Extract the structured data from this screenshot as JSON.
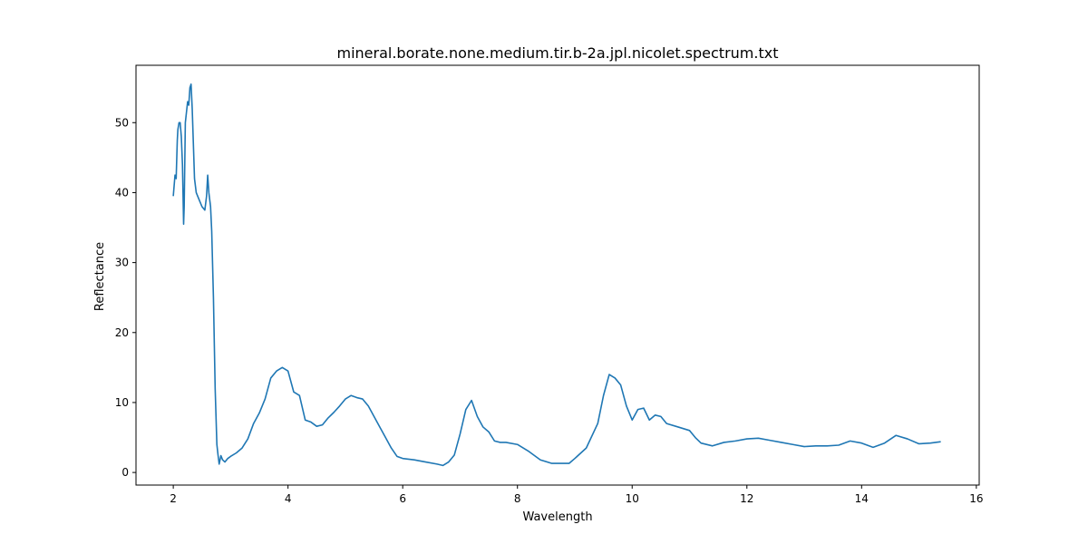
{
  "chart_data": {
    "type": "line",
    "title": "mineral.borate.none.medium.tir.b-2a.jpl.nicolet.spectrum.txt",
    "xlabel": "Wavelength",
    "ylabel": "Reflectance",
    "xlim": [
      1.35,
      16.05
    ],
    "ylim": [
      -1.8,
      58.2
    ],
    "xticks": [
      2,
      4,
      6,
      8,
      10,
      12,
      14,
      16
    ],
    "yticks": [
      0,
      10,
      20,
      30,
      40,
      50
    ],
    "grid": false,
    "legend": "none",
    "color": "#1f77b4",
    "series": [
      {
        "x": [
          2.0,
          2.03,
          2.05,
          2.07,
          2.08,
          2.1,
          2.12,
          2.14,
          2.16,
          2.18,
          2.19,
          2.2,
          2.21,
          2.23,
          2.25,
          2.27,
          2.29,
          2.31,
          2.33,
          2.35,
          2.37,
          2.4,
          2.45,
          2.5,
          2.55,
          2.58,
          2.6,
          2.62,
          2.65,
          2.67,
          2.7,
          2.73,
          2.76,
          2.78,
          2.8,
          2.83,
          2.86,
          2.9,
          2.95,
          3.0,
          3.1,
          3.2,
          3.3,
          3.4,
          3.5,
          3.6,
          3.7,
          3.8,
          3.9,
          4.0,
          4.1,
          4.2,
          4.3,
          4.4,
          4.5,
          4.6,
          4.7,
          4.8,
          4.9,
          5.0,
          5.1,
          5.2,
          5.3,
          5.4,
          5.5,
          5.6,
          5.7,
          5.8,
          5.9,
          6.0,
          6.2,
          6.4,
          6.6,
          6.7,
          6.8,
          6.9,
          7.0,
          7.1,
          7.2,
          7.3,
          7.4,
          7.5,
          7.6,
          7.7,
          7.8,
          8.0,
          8.2,
          8.4,
          8.6,
          8.8,
          8.9,
          9.0,
          9.2,
          9.4,
          9.5,
          9.6,
          9.7,
          9.8,
          9.9,
          10.0,
          10.1,
          10.2,
          10.3,
          10.4,
          10.5,
          10.6,
          10.8,
          11.0,
          11.1,
          11.2,
          11.4,
          11.6,
          11.8,
          12.0,
          12.2,
          12.4,
          12.6,
          12.8,
          13.0,
          13.2,
          13.4,
          13.6,
          13.8,
          14.0,
          14.2,
          14.4,
          14.6,
          14.8,
          15.0,
          15.2,
          15.38
        ],
        "y": [
          39.5,
          42.5,
          42.0,
          47.5,
          49.0,
          50.0,
          50.0,
          48.0,
          44.0,
          35.5,
          38.0,
          44.0,
          50.0,
          51.5,
          53.0,
          52.5,
          55.0,
          55.5,
          52.0,
          47.0,
          42.0,
          40.0,
          39.0,
          38.0,
          37.5,
          39.5,
          42.5,
          40.0,
          38.0,
          34.5,
          25.0,
          12.0,
          4.0,
          2.5,
          1.2,
          2.4,
          1.8,
          1.5,
          2.0,
          2.3,
          2.8,
          3.5,
          4.8,
          7.0,
          8.5,
          10.5,
          13.5,
          14.5,
          15.0,
          14.5,
          11.5,
          11.0,
          7.5,
          7.2,
          6.6,
          6.8,
          7.8,
          8.6,
          9.5,
          10.5,
          11.0,
          10.7,
          10.5,
          9.5,
          8.0,
          6.5,
          5.0,
          3.5,
          2.3,
          2.0,
          1.8,
          1.5,
          1.2,
          1.0,
          1.5,
          2.5,
          5.5,
          9.0,
          10.3,
          8.0,
          6.5,
          5.8,
          4.5,
          4.3,
          4.3,
          4.0,
          3.0,
          1.8,
          1.3,
          1.3,
          1.3,
          2.0,
          3.5,
          7.0,
          11.0,
          14.0,
          13.5,
          12.5,
          9.5,
          7.5,
          9.0,
          9.2,
          7.5,
          8.2,
          8.0,
          7.0,
          6.5,
          6.0,
          5.0,
          4.2,
          3.8,
          4.3,
          4.5,
          4.8,
          4.9,
          4.6,
          4.3,
          4.0,
          3.7,
          3.8,
          3.8,
          3.9,
          4.5,
          4.2,
          3.6,
          4.2,
          5.3,
          4.8,
          4.1,
          4.2,
          4.4
        ]
      }
    ]
  }
}
